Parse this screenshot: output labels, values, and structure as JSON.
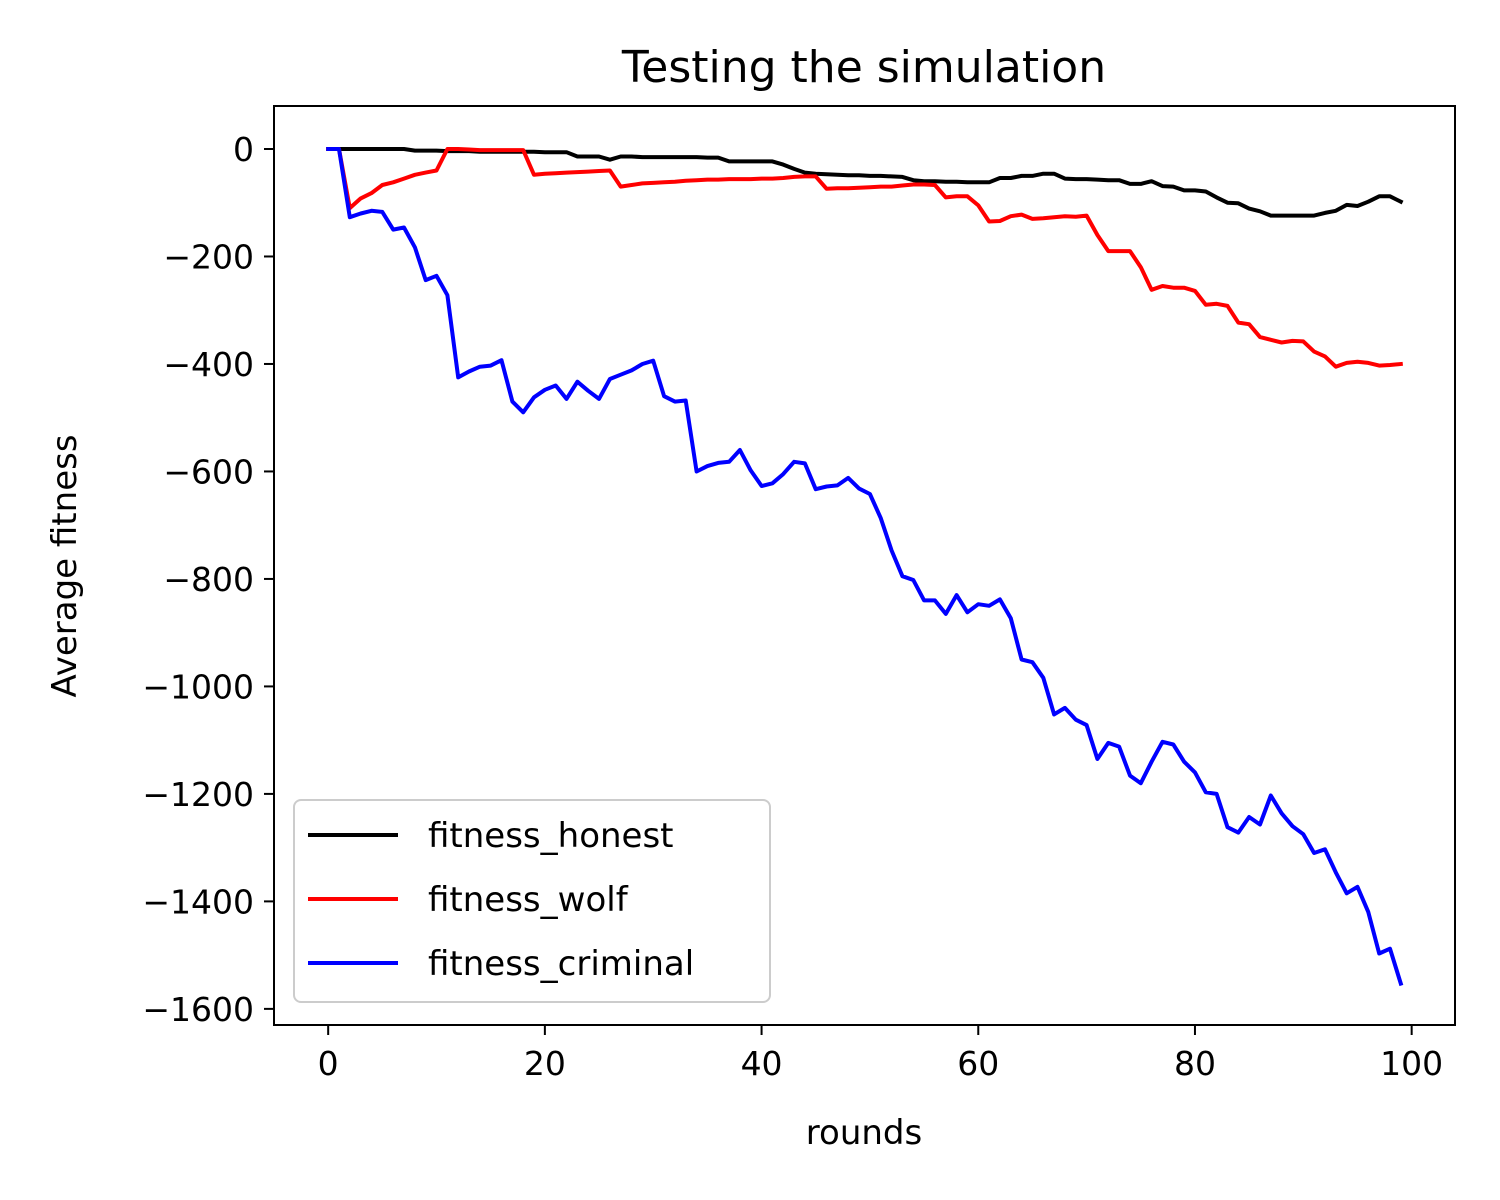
{
  "chart_data": {
    "type": "line",
    "title": "Testing the simulation",
    "xlabel": "rounds",
    "ylabel": "Average fitness",
    "xlim": [
      -5,
      104
    ],
    "ylim": [
      -1630,
      80
    ],
    "xticks": [
      0,
      20,
      40,
      60,
      80,
      100
    ],
    "yticks": [
      0,
      -200,
      -400,
      -600,
      -800,
      -1000,
      -1200,
      -1400,
      -1600
    ],
    "xtick_labels": [
      "0",
      "20",
      "40",
      "60",
      "80",
      "100"
    ],
    "ytick_labels": [
      "0",
      "−200",
      "−400",
      "−600",
      "−800",
      "−1000",
      "−1200",
      "−1400",
      "−1600"
    ],
    "grid": false,
    "legend_position": "lower-left",
    "series": [
      {
        "name": "fitness_honest",
        "color": "#000000",
        "x": [
          0,
          1,
          2,
          3,
          4,
          5,
          6,
          7,
          8,
          9,
          10,
          11,
          12,
          13,
          14,
          15,
          16,
          17,
          18,
          19,
          20,
          21,
          22,
          23,
          24,
          25,
          26,
          27,
          28,
          29,
          30,
          31,
          32,
          33,
          34,
          35,
          36,
          37,
          38,
          39,
          40,
          41,
          42,
          43,
          44,
          45,
          46,
          47,
          48,
          49,
          50,
          51,
          52,
          53,
          54,
          55,
          56,
          57,
          58,
          59,
          60,
          61,
          62,
          63,
          64,
          65,
          66,
          67,
          68,
          69,
          70,
          71,
          72,
          73,
          74,
          75,
          76,
          77,
          78,
          79,
          80,
          81,
          82,
          83,
          84,
          85,
          86,
          87,
          88,
          89,
          90,
          91,
          92,
          93,
          94,
          95,
          96,
          97,
          98,
          99
        ],
        "y": [
          0,
          0,
          0,
          0,
          0,
          0,
          0,
          0,
          -3,
          -3,
          -3,
          -4,
          -4,
          -4,
          -5,
          -5,
          -5,
          -5,
          -5,
          -5,
          -6,
          -6,
          -6,
          -14,
          -14,
          -14,
          -20,
          -14,
          -14,
          -15,
          -15,
          -15,
          -15,
          -15,
          -15,
          -16,
          -16,
          -23,
          -23,
          -23,
          -23,
          -23,
          -29,
          -37,
          -44,
          -46,
          -47,
          -48,
          -49,
          -49,
          -50,
          -50,
          -51,
          -52,
          -58,
          -60,
          -60,
          -61,
          -61,
          -62,
          -62,
          -62,
          -54,
          -54,
          -50,
          -50,
          -46,
          -46,
          -55,
          -56,
          -56,
          -57,
          -58,
          -58,
          -65,
          -65,
          -60,
          -69,
          -70,
          -77,
          -77,
          -79,
          -90,
          -100,
          -101,
          -111,
          -116,
          -124,
          -124,
          -124,
          -124,
          -124,
          -119,
          -115,
          -104,
          -106,
          -98,
          -88,
          -88,
          -98
        ]
      },
      {
        "name": "fitness_wolf",
        "color": "#ff0000",
        "x": [
          0,
          1,
          2,
          3,
          4,
          5,
          6,
          7,
          8,
          9,
          10,
          11,
          12,
          13,
          14,
          15,
          16,
          17,
          18,
          19,
          20,
          21,
          22,
          23,
          24,
          25,
          26,
          27,
          28,
          29,
          30,
          31,
          32,
          33,
          34,
          35,
          36,
          37,
          38,
          39,
          40,
          41,
          42,
          43,
          44,
          45,
          46,
          47,
          48,
          49,
          50,
          51,
          52,
          53,
          54,
          55,
          56,
          57,
          58,
          59,
          60,
          61,
          62,
          63,
          64,
          65,
          66,
          67,
          68,
          69,
          70,
          71,
          72,
          73,
          74,
          75,
          76,
          77,
          78,
          79,
          80,
          81,
          82,
          83,
          84,
          85,
          86,
          87,
          88,
          89,
          90,
          91,
          92,
          93,
          94,
          95,
          96,
          97,
          98,
          99
        ],
        "y": [
          0,
          0,
          -110,
          -92,
          -82,
          -67,
          -62,
          -55,
          -48,
          -44,
          -40,
          0,
          0,
          -1,
          -2,
          -2,
          -2,
          -2,
          -2,
          -48,
          -46,
          -45,
          -44,
          -43,
          -42,
          -41,
          -40,
          -70,
          -67,
          -64,
          -63,
          -62,
          -61,
          -59,
          -58,
          -57,
          -57,
          -56,
          -56,
          -56,
          -55,
          -55,
          -54,
          -52,
          -51,
          -51,
          -74,
          -73,
          -73,
          -72,
          -71,
          -70,
          -70,
          -68,
          -66,
          -66,
          -67,
          -90,
          -88,
          -88,
          -105,
          -135,
          -134,
          -125,
          -122,
          -130,
          -129,
          -127,
          -125,
          -126,
          -124,
          -160,
          -190,
          -190,
          -190,
          -220,
          -262,
          -255,
          -258,
          -258,
          -264,
          -290,
          -288,
          -292,
          -323,
          -326,
          -350,
          -355,
          -360,
          -357,
          -358,
          -377,
          -386,
          -405,
          -398,
          -396,
          -398,
          -403,
          -402,
          -400
        ]
      },
      {
        "name": "fitness_criminal",
        "color": "#0000ff",
        "x": [
          0,
          1,
          2,
          3,
          4,
          5,
          6,
          7,
          8,
          9,
          10,
          11,
          12,
          13,
          14,
          15,
          16,
          17,
          18,
          19,
          20,
          21,
          22,
          23,
          24,
          25,
          26,
          27,
          28,
          29,
          30,
          31,
          32,
          33,
          34,
          35,
          36,
          37,
          38,
          39,
          40,
          41,
          42,
          43,
          44,
          45,
          46,
          47,
          48,
          49,
          50,
          51,
          52,
          53,
          54,
          55,
          56,
          57,
          58,
          59,
          60,
          61,
          62,
          63,
          64,
          65,
          66,
          67,
          68,
          69,
          70,
          71,
          72,
          73,
          74,
          75,
          76,
          77,
          78,
          79,
          80,
          81,
          82,
          83,
          84,
          85,
          86,
          87,
          88,
          89,
          90,
          91,
          92,
          93,
          94,
          95,
          96,
          97,
          98,
          99
        ],
        "y": [
          0,
          0,
          -127,
          -120,
          -115,
          -117,
          -150,
          -146,
          -183,
          -244,
          -236,
          -272,
          -425,
          -414,
          -405,
          -403,
          -393,
          -470,
          -490,
          -462,
          -448,
          -440,
          -465,
          -433,
          -450,
          -465,
          -428,
          -420,
          -412,
          -400,
          -394,
          -460,
          -470,
          -468,
          -600,
          -590,
          -584,
          -582,
          -560,
          -598,
          -627,
          -622,
          -605,
          -582,
          -585,
          -633,
          -628,
          -626,
          -612,
          -632,
          -642,
          -687,
          -747,
          -795,
          -802,
          -840,
          -840,
          -865,
          -830,
          -862,
          -847,
          -850,
          -838,
          -873,
          -950,
          -955,
          -984,
          -1052,
          -1040,
          -1062,
          -1072,
          -1135,
          -1105,
          -1112,
          -1166,
          -1180,
          -1140,
          -1103,
          -1108,
          -1140,
          -1160,
          -1197,
          -1200,
          -1262,
          -1272,
          -1243,
          -1257,
          -1203,
          -1236,
          -1260,
          -1275,
          -1310,
          -1303,
          -1346,
          -1385,
          -1373,
          -1420,
          -1497,
          -1488,
          -1553
        ]
      }
    ]
  }
}
